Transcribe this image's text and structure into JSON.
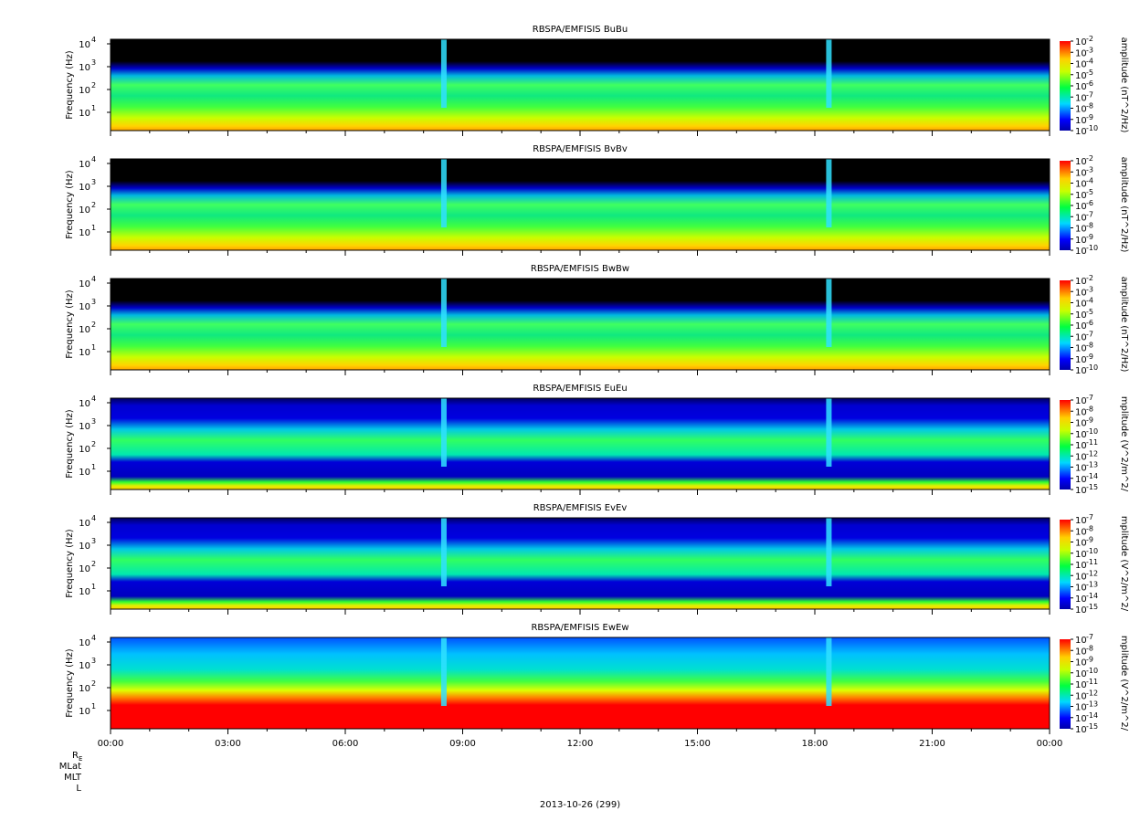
{
  "figure": {
    "x_tick_labels": [
      "00:00",
      "03:00",
      "06:00",
      "09:00",
      "12:00",
      "15:00",
      "18:00",
      "21:00",
      "00:00"
    ],
    "date_label": "2013-10-26 (299)",
    "ephemeris_labels": [
      "R_E",
      "MLat",
      "MLT",
      "L"
    ]
  },
  "chart_data": [
    {
      "type": "heatmap",
      "title": "RBSPA/EMFISIS  BuBu",
      "ylabel": "Frequency (Hz)",
      "y_scale": "log",
      "y_tick_labels": [
        "10",
        "10",
        "10",
        "10"
      ],
      "y_tick_exponents": [
        "1",
        "2",
        "3",
        "4"
      ],
      "colorbar_label": "amplitude (nT^2/Hz)",
      "colorbar_tick_labels": [
        "10",
        "10",
        "10",
        "10",
        "10",
        "10",
        "10",
        "10",
        "10"
      ],
      "colorbar_exponents": [
        "-2",
        "-3",
        "-4",
        "-5",
        "-6",
        "-7",
        "-8",
        "-9",
        "-10"
      ],
      "colormap": "rainbow"
    },
    {
      "type": "heatmap",
      "title": "RBSPA/EMFISIS  BvBv",
      "ylabel": "Frequency (Hz)",
      "y_scale": "log",
      "y_tick_labels": [
        "10",
        "10",
        "10",
        "10"
      ],
      "y_tick_exponents": [
        "1",
        "2",
        "3",
        "4"
      ],
      "colorbar_label": "amplitude (nT^2/Hz)",
      "colorbar_tick_labels": [
        "10",
        "10",
        "10",
        "10",
        "10",
        "10",
        "10",
        "10",
        "10"
      ],
      "colorbar_exponents": [
        "-2",
        "-3",
        "-4",
        "-5",
        "-6",
        "-7",
        "-8",
        "-9",
        "-10"
      ],
      "colormap": "rainbow"
    },
    {
      "type": "heatmap",
      "title": "RBSPA/EMFISIS  BwBw",
      "ylabel": "Frequency (Hz)",
      "y_scale": "log",
      "y_tick_labels": [
        "10",
        "10",
        "10",
        "10"
      ],
      "y_tick_exponents": [
        "1",
        "2",
        "3",
        "4"
      ],
      "colorbar_label": "amplitude (nT^2/Hz)",
      "colorbar_tick_labels": [
        "10",
        "10",
        "10",
        "10",
        "10",
        "10",
        "10",
        "10",
        "10"
      ],
      "colorbar_exponents": [
        "-2",
        "-3",
        "-4",
        "-5",
        "-6",
        "-7",
        "-8",
        "-9",
        "-10"
      ],
      "colormap": "rainbow"
    },
    {
      "type": "heatmap",
      "title": "RBSPA/EMFISIS  EuEu",
      "ylabel": "Frequency (Hz)",
      "y_scale": "log",
      "y_tick_labels": [
        "10",
        "10",
        "10",
        "10"
      ],
      "y_tick_exponents": [
        "1",
        "2",
        "3",
        "4"
      ],
      "colorbar_label": "mplitude (V^2/m^2/",
      "colorbar_tick_labels": [
        "10",
        "10",
        "10",
        "10",
        "10",
        "10",
        "10",
        "10",
        "10"
      ],
      "colorbar_exponents": [
        "-7",
        "-8",
        "-9",
        "-10",
        "-11",
        "-12",
        "-13",
        "-14",
        "-15"
      ],
      "colormap": "rainbow"
    },
    {
      "type": "heatmap",
      "title": "RBSPA/EMFISIS  EvEv",
      "ylabel": "Frequency (Hz)",
      "y_scale": "log",
      "y_tick_labels": [
        "10",
        "10",
        "10",
        "10"
      ],
      "y_tick_exponents": [
        "1",
        "2",
        "3",
        "4"
      ],
      "colorbar_label": "mplitude (V^2/m^2/",
      "colorbar_tick_labels": [
        "10",
        "10",
        "10",
        "10",
        "10",
        "10",
        "10",
        "10",
        "10"
      ],
      "colorbar_exponents": [
        "-7",
        "-8",
        "-9",
        "-10",
        "-11",
        "-12",
        "-13",
        "-14",
        "-15"
      ],
      "colormap": "rainbow"
    },
    {
      "type": "heatmap",
      "title": "RBSPA/EMFISIS  EwEw",
      "ylabel": "Frequency (Hz)",
      "y_scale": "log",
      "y_tick_labels": [
        "10",
        "10",
        "10",
        "10"
      ],
      "y_tick_exponents": [
        "1",
        "2",
        "3",
        "4"
      ],
      "colorbar_label": "mplitude (V^2/m^2/",
      "colorbar_tick_labels": [
        "10",
        "10",
        "10",
        "10",
        "10",
        "10",
        "10",
        "10",
        "10"
      ],
      "colorbar_exponents": [
        "-7",
        "-8",
        "-9",
        "-10",
        "-11",
        "-12",
        "-13",
        "-14",
        "-15"
      ],
      "colormap": "rainbow"
    }
  ]
}
